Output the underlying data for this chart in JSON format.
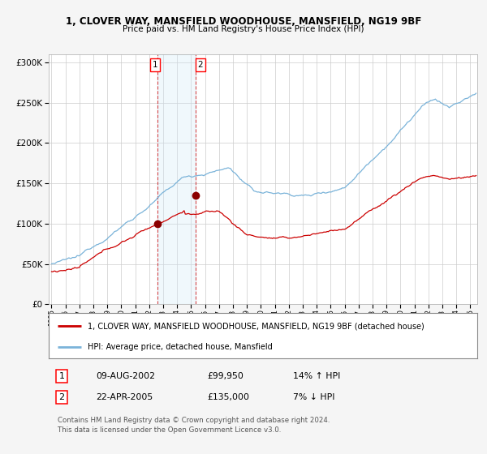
{
  "title_line1": "1, CLOVER WAY, MANSFIELD WOODHOUSE, MANSFIELD, NG19 9BF",
  "title_line2": "Price paid vs. HM Land Registry's House Price Index (HPI)",
  "legend_line1": "1, CLOVER WAY, MANSFIELD WOODHOUSE, MANSFIELD, NG19 9BF (detached house)",
  "legend_line2": "HPI: Average price, detached house, Mansfield",
  "transaction1_date": "09-AUG-2002",
  "transaction1_price": "£99,950",
  "transaction1_hpi": "14% ↑ HPI",
  "transaction2_date": "22-APR-2005",
  "transaction2_price": "£135,000",
  "transaction2_hpi": "7% ↓ HPI",
  "copyright": "Contains HM Land Registry data © Crown copyright and database right 2024.\nThis data is licensed under the Open Government Licence v3.0.",
  "hpi_color": "#7ab3d9",
  "price_color": "#cc0000",
  "marker_color": "#8b0000",
  "bg_color": "#f5f5f5",
  "plot_bg_color": "#ffffff",
  "grid_color": "#cccccc",
  "transaction1_x": 2002.58,
  "transaction2_x": 2005.3,
  "transaction1_y": 99950,
  "transaction2_y": 135000,
  "ylim": [
    0,
    310000
  ],
  "xlim_start": 1994.8,
  "xlim_end": 2025.5,
  "highlight_color": "#d0e8f8"
}
